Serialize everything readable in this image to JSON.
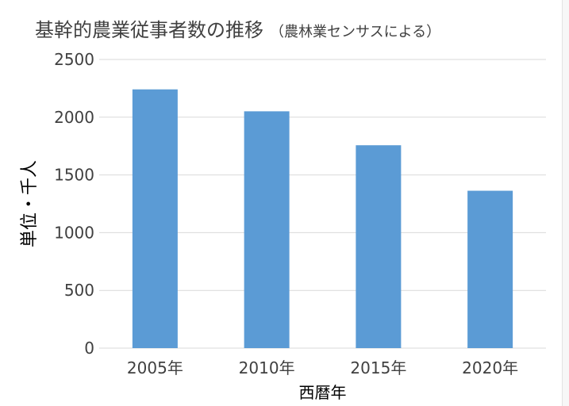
{
  "chart_data": {
    "type": "bar",
    "title": "基幹的農業従事者数の推移",
    "subtitle": "（農林業センサスによる）",
    "xlabel": "西暦年",
    "ylabel": "単位・千人",
    "categories": [
      "2005年",
      "2010年",
      "2015年",
      "2020年"
    ],
    "values": [
      2241,
      2051,
      1757,
      1363
    ],
    "ylim": [
      0,
      2500
    ],
    "yticks": [
      0,
      500,
      1000,
      1500,
      2000,
      2500
    ],
    "grid": true,
    "legend": "none",
    "colors": {
      "bar": "#5b9bd5",
      "grid": "#d9d9d9",
      "text": "#404040"
    }
  }
}
